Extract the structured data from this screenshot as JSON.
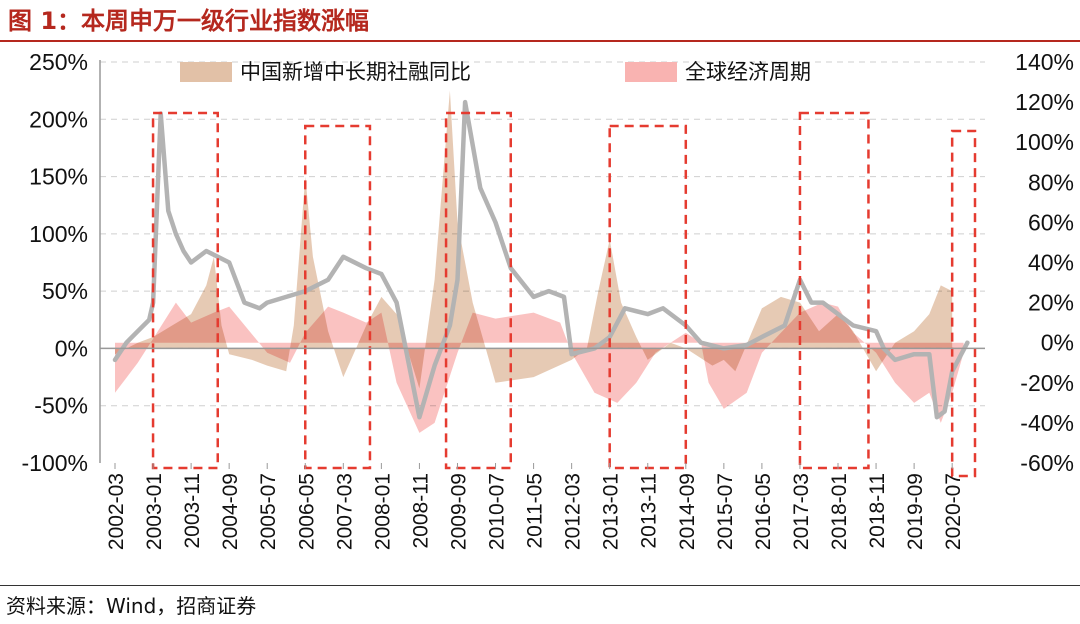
{
  "figure": {
    "title": "图 1：本周申万一级行业指数涨幅",
    "source": "资料来源：Wind，招商证券"
  },
  "colors": {
    "title_red": "#b5281e",
    "series_credit": "#e2c1a7",
    "series_global": "#f9b3b1",
    "series_index": "#b3b3b3",
    "box_red": "#e53b30",
    "grid": "#cfcfcf"
  },
  "chart_data": {
    "type": "area",
    "x_tick_labels": [
      "2002-03",
      "2003-01",
      "2003-11",
      "2004-09",
      "2005-07",
      "2006-05",
      "2007-03",
      "2008-01",
      "2008-11",
      "2009-09",
      "2010-07",
      "2011-05",
      "2012-03",
      "2013-01",
      "2013-11",
      "2014-09",
      "2015-07",
      "2016-05",
      "2017-03",
      "2018-01",
      "2018-11",
      "2019-09",
      "2020-07"
    ],
    "x_range": [
      "2002-03",
      "2021-01"
    ],
    "y_left": {
      "ticks": [
        "-100%",
        "-50%",
        "0%",
        "50%",
        "100%",
        "150%",
        "200%",
        "250%"
      ],
      "range": [
        -100,
        250
      ]
    },
    "y_right": {
      "ticks": [
        "-60%",
        "-40%",
        "-20%",
        "0%",
        "20%",
        "40%",
        "60%",
        "80%",
        "100%",
        "120%",
        "140%"
      ],
      "range": [
        -60,
        140
      ]
    },
    "grid": "horizontal-dashed",
    "legend": "top-center",
    "series": [
      {
        "name": "中国新增中长期社融同比",
        "kind": "area",
        "axis": "left",
        "values": [
          [
            "2002-03",
            -5
          ],
          [
            "2002-09",
            5
          ],
          [
            "2003-01",
            10
          ],
          [
            "2003-06",
            20
          ],
          [
            "2003-11",
            30
          ],
          [
            "2004-03",
            55
          ],
          [
            "2004-05",
            80
          ],
          [
            "2004-07",
            20
          ],
          [
            "2004-09",
            -5
          ],
          [
            "2005-03",
            -10
          ],
          [
            "2005-07",
            -15
          ],
          [
            "2005-12",
            -20
          ],
          [
            "2006-02",
            20
          ],
          [
            "2006-05",
            150
          ],
          [
            "2006-07",
            80
          ],
          [
            "2006-11",
            15
          ],
          [
            "2007-03",
            -25
          ],
          [
            "2007-09",
            20
          ],
          [
            "2008-01",
            45
          ],
          [
            "2008-05",
            30
          ],
          [
            "2008-11",
            -35
          ],
          [
            "2009-03",
            60
          ],
          [
            "2009-07",
            225
          ],
          [
            "2009-09",
            110
          ],
          [
            "2010-01",
            40
          ],
          [
            "2010-07",
            -30
          ],
          [
            "2011-05",
            -25
          ],
          [
            "2012-03",
            -10
          ],
          [
            "2012-07",
            0
          ],
          [
            "2012-10",
            50
          ],
          [
            "2013-01",
            95
          ],
          [
            "2013-04",
            40
          ],
          [
            "2013-08",
            10
          ],
          [
            "2013-11",
            -10
          ],
          [
            "2014-05",
            5
          ],
          [
            "2014-09",
            0
          ],
          [
            "2015-04",
            -15
          ],
          [
            "2015-07",
            -10
          ],
          [
            "2015-10",
            -20
          ],
          [
            "2016-05",
            35
          ],
          [
            "2016-10",
            45
          ],
          [
            "2017-03",
            40
          ],
          [
            "2017-08",
            15
          ],
          [
            "2018-01",
            30
          ],
          [
            "2018-05",
            15
          ],
          [
            "2018-11",
            -20
          ],
          [
            "2019-04",
            5
          ],
          [
            "2019-09",
            15
          ],
          [
            "2020-01",
            30
          ],
          [
            "2020-04",
            55
          ],
          [
            "2020-07",
            50
          ]
        ]
      },
      {
        "name": "全球经济周期",
        "kind": "area",
        "axis": "right",
        "values": [
          [
            "2002-03",
            -25
          ],
          [
            "2002-09",
            -10
          ],
          [
            "2003-01",
            2
          ],
          [
            "2003-07",
            20
          ],
          [
            "2003-11",
            10
          ],
          [
            "2004-05",
            15
          ],
          [
            "2004-09",
            18
          ],
          [
            "2005-07",
            -5
          ],
          [
            "2006-01",
            -10
          ],
          [
            "2006-05",
            5
          ],
          [
            "2006-11",
            18
          ],
          [
            "2007-03",
            15
          ],
          [
            "2007-09",
            10
          ],
          [
            "2008-01",
            15
          ],
          [
            "2008-05",
            -20
          ],
          [
            "2008-11",
            -45
          ],
          [
            "2009-03",
            -40
          ],
          [
            "2009-09",
            -5
          ],
          [
            "2010-01",
            15
          ],
          [
            "2010-07",
            12
          ],
          [
            "2011-05",
            15
          ],
          [
            "2011-12",
            10
          ],
          [
            "2012-03",
            -5
          ],
          [
            "2012-09",
            -25
          ],
          [
            "2013-03",
            -30
          ],
          [
            "2013-08",
            -20
          ],
          [
            "2014-01",
            -5
          ],
          [
            "2014-09",
            5
          ],
          [
            "2015-01",
            0
          ],
          [
            "2015-03",
            -20
          ],
          [
            "2015-07",
            -33
          ],
          [
            "2016-01",
            -25
          ],
          [
            "2016-05",
            -5
          ],
          [
            "2017-03",
            15
          ],
          [
            "2017-09",
            20
          ],
          [
            "2018-01",
            18
          ],
          [
            "2018-05",
            5
          ],
          [
            "2018-11",
            -5
          ],
          [
            "2019-04",
            -20
          ],
          [
            "2019-09",
            -30
          ],
          [
            "2020-01",
            -25
          ],
          [
            "2020-04",
            -40
          ],
          [
            "2020-07",
            -25
          ],
          [
            "2020-10",
            -5
          ]
        ]
      },
      {
        "name": "",
        "kind": "line",
        "axis": "left",
        "values": [
          [
            "2002-03",
            -10
          ],
          [
            "2002-06",
            5
          ],
          [
            "2002-09",
            15
          ],
          [
            "2002-12",
            25
          ],
          [
            "2003-01",
            40
          ],
          [
            "2003-03",
            205
          ],
          [
            "2003-05",
            120
          ],
          [
            "2003-07",
            100
          ],
          [
            "2003-09",
            85
          ],
          [
            "2003-11",
            75
          ],
          [
            "2004-03",
            85
          ],
          [
            "2004-09",
            75
          ],
          [
            "2005-01",
            40
          ],
          [
            "2005-05",
            35
          ],
          [
            "2005-07",
            40
          ],
          [
            "2005-12",
            45
          ],
          [
            "2006-05",
            50
          ],
          [
            "2006-11",
            60
          ],
          [
            "2007-03",
            80
          ],
          [
            "2007-09",
            70
          ],
          [
            "2008-01",
            65
          ],
          [
            "2008-05",
            40
          ],
          [
            "2008-11",
            -60
          ],
          [
            "2009-03",
            -15
          ],
          [
            "2009-07",
            20
          ],
          [
            "2009-09",
            60
          ],
          [
            "2009-11",
            215
          ],
          [
            "2010-03",
            140
          ],
          [
            "2010-07",
            110
          ],
          [
            "2010-11",
            70
          ],
          [
            "2011-05",
            45
          ],
          [
            "2011-09",
            50
          ],
          [
            "2012-01",
            45
          ],
          [
            "2012-03",
            -5
          ],
          [
            "2012-09",
            0
          ],
          [
            "2013-01",
            10
          ],
          [
            "2013-05",
            35
          ],
          [
            "2013-11",
            30
          ],
          [
            "2014-03",
            35
          ],
          [
            "2014-09",
            20
          ],
          [
            "2015-01",
            5
          ],
          [
            "2015-07",
            0
          ],
          [
            "2016-01",
            3
          ],
          [
            "2016-05",
            10
          ],
          [
            "2016-11",
            20
          ],
          [
            "2017-03",
            60
          ],
          [
            "2017-06",
            40
          ],
          [
            "2017-09",
            40
          ],
          [
            "2018-01",
            30
          ],
          [
            "2018-05",
            20
          ],
          [
            "2018-11",
            15
          ],
          [
            "2019-01",
            0
          ],
          [
            "2019-04",
            -10
          ],
          [
            "2019-09",
            -5
          ],
          [
            "2020-01",
            -5
          ],
          [
            "2020-03",
            -60
          ],
          [
            "2020-05",
            -55
          ],
          [
            "2020-07",
            -20
          ],
          [
            "2020-11",
            5
          ]
        ]
      }
    ],
    "highlight_boxes": [
      [
        "2003-01",
        "2004-06"
      ],
      [
        "2006-05",
        "2007-10"
      ],
      [
        "2009-06",
        "2010-11"
      ],
      [
        "2013-01",
        "2014-09"
      ],
      [
        "2017-03",
        "2018-09"
      ],
      [
        "2020-07",
        "2021-01"
      ]
    ]
  }
}
